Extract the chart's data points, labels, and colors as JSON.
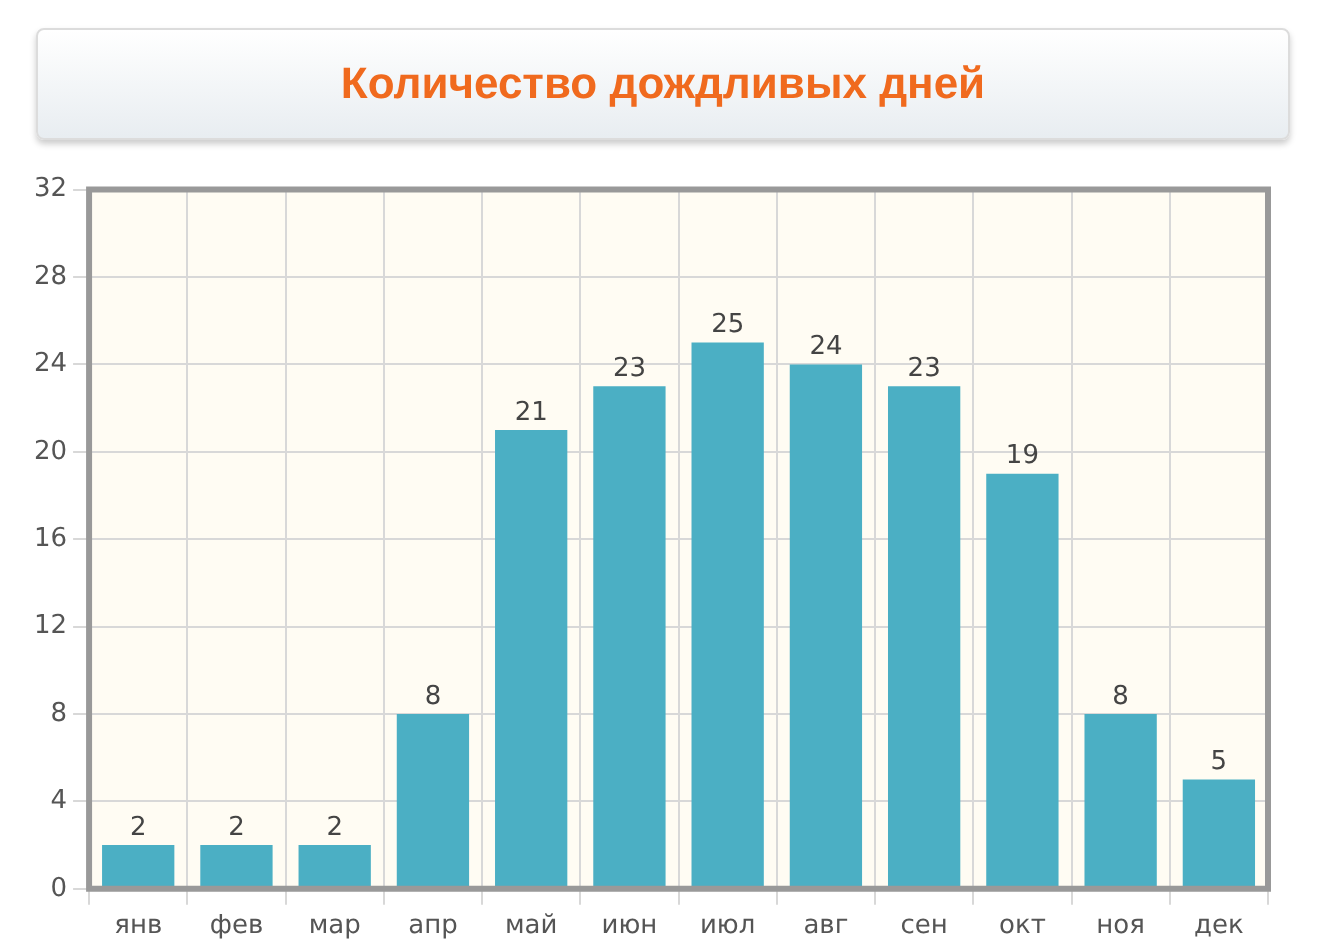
{
  "chart_data": {
    "type": "bar",
    "title": "Количество дождливых дней",
    "categories": [
      "янв",
      "фев",
      "мар",
      "апр",
      "май",
      "июн",
      "июл",
      "авг",
      "сен",
      "окт",
      "ноя",
      "дек"
    ],
    "values": [
      2,
      2,
      2,
      8,
      21,
      23,
      25,
      24,
      23,
      19,
      8,
      5
    ],
    "color": "#4bafc4",
    "ylim": [
      0,
      32
    ],
    "yticks": [
      0,
      4,
      8,
      12,
      16,
      20,
      24,
      28,
      32
    ],
    "grid": true,
    "data_labels": true,
    "legend": false
  }
}
